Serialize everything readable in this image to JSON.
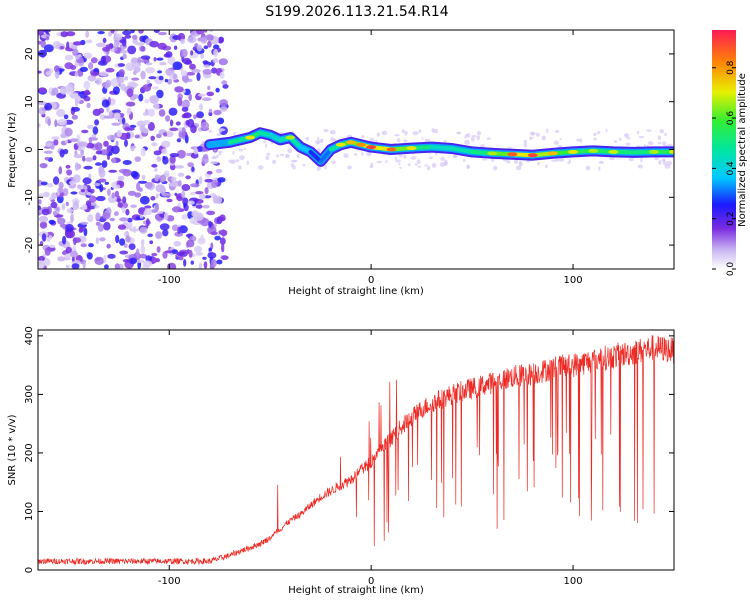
{
  "figure": {
    "title": "S199.2026.113.21.54.R14"
  },
  "colors": {
    "axis": "#000000",
    "snr_line": "#ee2a24",
    "background": "#ffffff"
  },
  "chart_data": [
    {
      "type": "heatmap",
      "name": "spectrogram",
      "title": "",
      "xlabel": "Height of straight line (km)",
      "ylabel": "Frequency (Hz)",
      "xlim": [
        -165,
        150
      ],
      "ylim": [
        -25,
        25
      ],
      "x_ticks": [
        -100,
        0,
        100
      ],
      "y_ticks": [
        -20,
        -10,
        0,
        10,
        20
      ],
      "grid": false,
      "noise_region_x": [
        -165,
        -80
      ],
      "ridge": {
        "x": [
          -80,
          -70,
          -60,
          -55,
          -50,
          -45,
          -40,
          -35,
          -30,
          -25,
          -20,
          -15,
          -10,
          -5,
          0,
          10,
          20,
          30,
          40,
          50,
          60,
          70,
          80,
          90,
          100,
          110,
          120,
          130,
          140,
          150
        ],
        "freq_hz": [
          1.0,
          1.5,
          2.5,
          3.5,
          3.0,
          2.0,
          2.5,
          0.5,
          -0.5,
          -2.5,
          0.0,
          1.0,
          1.5,
          1.0,
          0.5,
          0.0,
          0.3,
          0.5,
          0.2,
          -0.5,
          -0.8,
          -1.0,
          -1.2,
          -0.8,
          -0.5,
          -0.3,
          -0.5,
          -0.6,
          -0.5,
          -0.5
        ],
        "amplitude": [
          0.35,
          0.55,
          0.75,
          0.65,
          0.6,
          0.5,
          0.7,
          0.55,
          0.4,
          0.3,
          0.5,
          0.75,
          0.8,
          0.85,
          0.95,
          0.9,
          0.75,
          0.6,
          0.55,
          0.65,
          0.7,
          0.92,
          0.95,
          0.8,
          0.75,
          0.7,
          0.72,
          0.65,
          0.7,
          0.75
        ]
      },
      "colorbar": {
        "label": "Normalized spectral amplitude",
        "range": [
          0.0,
          0.95
        ],
        "ticks": [
          "0.0",
          "0.2",
          "0.4",
          "0.6",
          "0.8"
        ],
        "tick_values": [
          0.0,
          0.2,
          0.4,
          0.6,
          0.8
        ]
      }
    },
    {
      "type": "line",
      "name": "snr",
      "title": "",
      "xlabel": "Height of straight line (km)",
      "ylabel": "SNR (10 * v/v)",
      "xlim": [
        -165,
        150
      ],
      "ylim": [
        0,
        410
      ],
      "x_ticks": [
        -100,
        0,
        100
      ],
      "y_ticks": [
        0,
        100,
        200,
        300,
        400
      ],
      "grid": false,
      "series": [
        {
          "name": "SNR",
          "x": [
            -165,
            -140,
            -120,
            -100,
            -80,
            -75,
            -70,
            -65,
            -60,
            -55,
            -50,
            -45,
            -40,
            -35,
            -30,
            -25,
            -20,
            -15,
            -10,
            -5,
            0,
            5,
            10,
            15,
            20,
            25,
            30,
            40,
            50,
            60,
            70,
            80,
            90,
            100,
            110,
            120,
            130,
            140,
            150
          ],
          "y": [
            15,
            15,
            15,
            15,
            15,
            20,
            25,
            32,
            38,
            45,
            55,
            70,
            85,
            95,
            110,
            125,
            135,
            145,
            155,
            170,
            185,
            205,
            225,
            245,
            260,
            275,
            285,
            300,
            310,
            320,
            330,
            335,
            345,
            350,
            358,
            365,
            372,
            380,
            375
          ]
        }
      ]
    }
  ]
}
